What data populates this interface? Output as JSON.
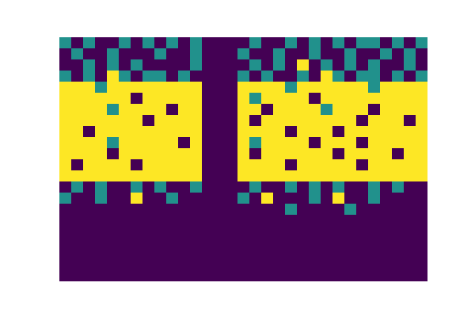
{
  "chart_data": {
    "type": "heatmap",
    "color": "viridis",
    "tick_labels": false,
    "zlim": [
      0,
      1
    ],
    "z": [
      [
        0.5,
        0,
        0.5,
        0,
        0,
        0.5,
        0,
        0.5,
        0,
        0.5,
        0,
        0.5,
        0,
        0,
        0,
        0,
        0.5,
        0,
        0,
        0.5,
        0,
        0.5,
        0,
        0.5,
        0,
        0.5,
        0.5,
        0,
        0.5,
        0,
        0.5
      ],
      [
        0,
        0.5,
        0,
        0,
        0.5,
        0,
        0,
        0,
        0.5,
        0,
        0,
        0.5,
        0,
        0,
        0,
        0.5,
        0,
        0,
        0.5,
        0,
        0,
        0.5,
        0,
        0,
        0.5,
        0,
        0,
        0.5,
        0,
        0.5,
        0
      ],
      [
        0,
        0,
        0.5,
        0,
        0.5,
        0,
        0.5,
        0,
        0,
        0,
        0,
        0.5,
        0,
        0,
        0,
        0,
        0.5,
        0,
        0.5,
        0,
        1,
        0,
        0.5,
        0,
        0.5,
        0,
        0.5,
        0,
        0,
        0.5,
        0
      ],
      [
        0.5,
        0,
        0.5,
        0,
        1,
        0.5,
        0,
        0.5,
        0.5,
        0,
        0.5,
        0,
        0,
        0,
        0,
        0.5,
        0,
        0.5,
        0,
        0,
        0.5,
        0,
        1,
        0.5,
        0,
        0.5,
        0.5,
        0,
        0.5,
        0,
        0.5
      ],
      [
        1,
        1,
        1,
        0.5,
        1,
        1,
        1,
        1,
        1,
        1,
        1,
        1,
        0,
        0,
        0,
        1,
        1,
        1,
        1,
        0.5,
        1,
        1,
        1,
        1,
        1,
        1,
        0.5,
        1,
        1,
        1,
        1
      ],
      [
        1,
        1,
        1,
        1,
        1,
        1,
        0,
        1,
        1,
        1,
        1,
        1,
        0,
        0,
        0,
        1,
        0.5,
        1,
        1,
        1,
        1,
        0,
        1,
        1,
        1,
        1,
        1,
        1,
        1,
        1,
        1
      ],
      [
        1,
        1,
        1,
        1,
        0.5,
        1,
        1,
        1,
        1,
        0,
        1,
        1,
        0,
        0,
        0,
        1,
        1,
        0,
        1,
        1,
        1,
        1,
        0.5,
        1,
        1,
        1,
        0,
        1,
        1,
        1,
        1
      ],
      [
        1,
        1,
        1,
        1,
        1,
        1,
        1,
        0,
        1,
        1,
        1,
        1,
        0,
        0,
        0,
        1,
        0,
        1,
        1,
        1,
        1,
        1,
        1,
        1,
        1,
        0,
        1,
        1,
        1,
        0,
        1
      ],
      [
        1,
        1,
        0,
        1,
        1,
        1,
        1,
        1,
        1,
        1,
        1,
        1,
        0,
        0,
        0,
        1,
        1,
        1,
        1,
        0,
        1,
        1,
        1,
        0,
        1,
        1,
        1,
        1,
        1,
        1,
        1
      ],
      [
        1,
        1,
        1,
        1,
        0.5,
        1,
        1,
        1,
        1,
        1,
        0,
        1,
        0,
        0,
        0,
        1,
        0.5,
        1,
        1,
        1,
        1,
        0,
        1,
        1,
        1,
        0,
        1,
        1,
        1,
        1,
        1
      ],
      [
        1,
        1,
        1,
        1,
        0,
        1,
        1,
        1,
        1,
        1,
        1,
        1,
        0,
        0,
        0,
        1,
        0,
        1,
        1,
        1,
        1,
        1,
        1,
        0,
        1,
        1,
        1,
        1,
        0,
        1,
        1
      ],
      [
        1,
        0,
        1,
        1,
        1,
        1,
        0,
        1,
        1,
        1,
        1,
        1,
        0,
        0,
        0,
        1,
        1,
        1,
        1,
        0,
        1,
        1,
        1,
        1,
        1,
        0,
        1,
        1,
        1,
        1,
        1
      ],
      [
        1,
        1,
        1,
        1,
        1,
        1,
        1,
        1,
        1,
        1,
        1,
        1,
        0,
        0,
        0,
        1,
        1,
        1,
        1,
        1,
        1,
        1,
        1,
        1,
        1,
        1,
        1,
        1,
        1,
        1,
        1
      ],
      [
        0,
        0.5,
        0,
        0.5,
        0,
        0,
        0.5,
        0,
        0.5,
        0,
        0,
        0.5,
        0,
        0,
        0,
        0,
        0.5,
        0,
        0,
        0.5,
        0,
        0.5,
        0,
        0.5,
        0,
        0,
        0.5,
        0,
        0.5,
        0,
        0
      ],
      [
        0.5,
        0,
        0,
        0.5,
        0,
        0,
        1,
        0,
        0,
        0.5,
        0,
        0,
        0,
        0,
        0,
        0.5,
        0,
        1,
        0,
        0,
        0,
        0.5,
        0,
        1,
        0,
        0,
        0.5,
        0,
        0,
        0,
        0
      ],
      [
        0,
        0,
        0,
        0,
        0,
        0,
        0,
        0,
        0,
        0,
        0,
        0,
        0,
        0,
        0,
        0,
        0,
        0,
        0,
        0.5,
        0,
        0,
        0,
        0,
        0.5,
        0,
        0,
        0,
        0,
        0,
        0
      ],
      [
        0,
        0,
        0,
        0,
        0,
        0,
        0,
        0,
        0,
        0,
        0,
        0,
        0,
        0,
        0,
        0,
        0,
        0,
        0,
        0,
        0,
        0,
        0,
        0,
        0,
        0,
        0,
        0,
        0,
        0,
        0
      ],
      [
        0,
        0,
        0,
        0,
        0,
        0,
        0,
        0,
        0,
        0,
        0,
        0,
        0,
        0,
        0,
        0,
        0,
        0,
        0,
        0,
        0,
        0,
        0,
        0,
        0,
        0,
        0,
        0,
        0,
        0,
        0
      ],
      [
        0,
        0,
        0,
        0,
        0,
        0,
        0,
        0,
        0,
        0,
        0,
        0,
        0,
        0,
        0,
        0,
        0,
        0,
        0,
        0,
        0,
        0,
        0,
        0,
        0,
        0,
        0,
        0,
        0,
        0,
        0
      ],
      [
        0,
        0,
        0,
        0,
        0,
        0,
        0,
        0,
        0,
        0,
        0,
        0,
        0,
        0,
        0,
        0,
        0,
        0,
        0,
        0,
        0,
        0,
        0,
        0,
        0,
        0,
        0,
        0,
        0,
        0,
        0
      ],
      [
        0,
        0,
        0,
        0,
        0,
        0,
        0,
        0,
        0,
        0,
        0,
        0,
        0,
        0,
        0,
        0,
        0,
        0,
        0,
        0,
        0,
        0,
        0,
        0,
        0,
        0,
        0,
        0,
        0,
        0,
        0
      ],
      [
        0,
        0,
        0,
        0,
        0,
        0,
        0,
        0,
        0,
        0,
        0,
        0,
        0,
        0,
        0,
        0,
        0,
        0,
        0,
        0,
        0,
        0,
        0,
        0,
        0,
        0,
        0,
        0,
        0,
        0,
        0
      ]
    ]
  }
}
